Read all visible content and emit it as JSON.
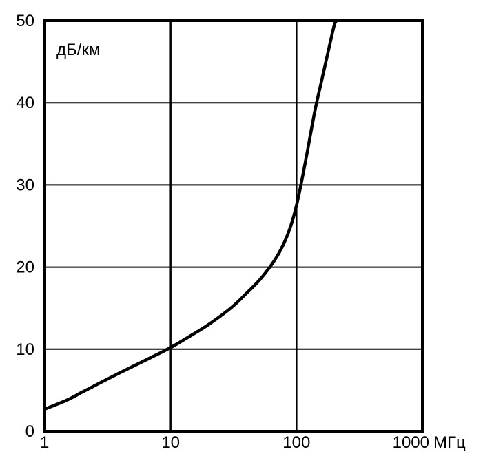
{
  "chart_data": {
    "type": "line",
    "x_scale": "log",
    "xlim": [
      1,
      1000
    ],
    "ylim": [
      0,
      50
    ],
    "x_ticks": [
      {
        "value": 1,
        "label": "1"
      },
      {
        "value": 10,
        "label": "10"
      },
      {
        "value": 100,
        "label": "100"
      },
      {
        "value": 1000,
        "label": "1000"
      }
    ],
    "y_ticks": [
      {
        "value": 0,
        "label": "0"
      },
      {
        "value": 10,
        "label": "10"
      },
      {
        "value": 20,
        "label": "20"
      },
      {
        "value": 30,
        "label": "30"
      },
      {
        "value": 40,
        "label": "40"
      },
      {
        "value": 50,
        "label": "50"
      }
    ],
    "xlabel": "МГц",
    "ylabel": "дБ/км",
    "grid": true,
    "series": [
      {
        "x": [
          1,
          1.5,
          2,
          3,
          5,
          7,
          10,
          15,
          20,
          30,
          40,
          50,
          60,
          70,
          80,
          90,
          100,
          110,
          120,
          140,
          160,
          180,
          200,
          210
        ],
        "y": [
          2.7,
          3.8,
          4.8,
          6.2,
          7.9,
          9.0,
          10.2,
          11.8,
          13.0,
          15.0,
          16.8,
          18.3,
          19.8,
          21.3,
          23.0,
          25.0,
          27.5,
          30.5,
          33.5,
          39.0,
          43.0,
          46.5,
          49.5,
          50.0
        ],
        "color": "#000000"
      }
    ]
  }
}
